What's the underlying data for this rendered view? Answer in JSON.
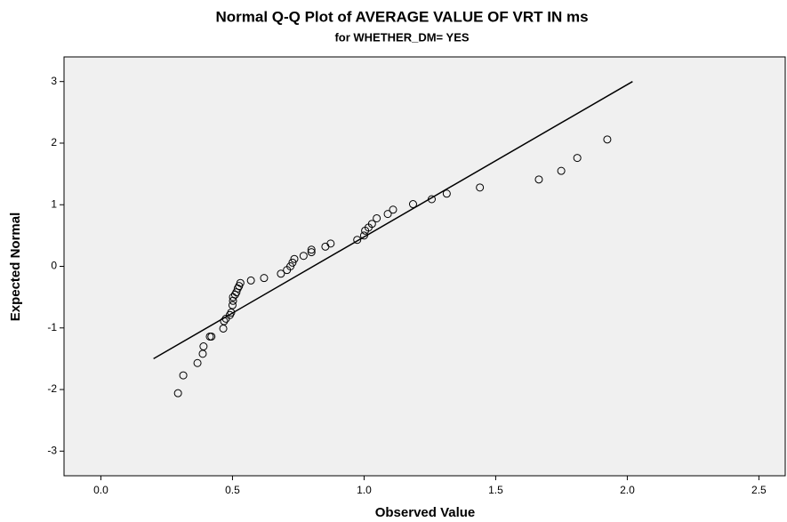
{
  "chart_data": {
    "type": "scatter",
    "title": "Normal Q-Q Plot of AVERAGE VALUE OF VRT IN ms",
    "subtitle": "for WHETHER_DM= YES",
    "x_label": "Observed Value",
    "y_label": "Expected Normal",
    "xlim": [
      -0.14,
      2.6
    ],
    "ylim": [
      -3.4,
      3.4
    ],
    "xticks": [
      {
        "value": 0,
        "label": "0.0"
      },
      0.5,
      {
        "value": 1,
        "label": "1.0"
      },
      1.5,
      {
        "value": 2,
        "label": "2.0"
      },
      2.5
    ],
    "yticks": [
      -3,
      -2,
      -1,
      0,
      1,
      2,
      3
    ],
    "background": "#f0f0f0",
    "series": [
      {
        "mode": "markers",
        "color": "#000000",
        "x": [
          0.293,
          0.313,
          0.367,
          0.387,
          0.39,
          0.414,
          0.42,
          0.465,
          0.468,
          0.475,
          0.49,
          0.495,
          0.5,
          0.502,
          0.502,
          0.51,
          0.515,
          0.52,
          0.525,
          0.53,
          0.57,
          0.62,
          0.684,
          0.707,
          0.72,
          0.728,
          0.735,
          0.77,
          0.8,
          0.8,
          0.853,
          0.873,
          0.974,
          1.0,
          1.004,
          1.017,
          1.03,
          1.048,
          1.09,
          1.11,
          1.186,
          1.257,
          1.314,
          1.44,
          1.664,
          1.749,
          1.81,
          1.924
        ],
        "values": [
          -2.06,
          -1.77,
          -1.57,
          -1.42,
          -1.3,
          -1.14,
          -1.14,
          -1.01,
          -0.89,
          -0.85,
          -0.79,
          -0.75,
          -0.63,
          -0.56,
          -0.5,
          -0.46,
          -0.42,
          -0.36,
          -0.32,
          -0.27,
          -0.23,
          -0.19,
          -0.12,
          -0.06,
          0.0,
          0.06,
          0.12,
          0.17,
          0.23,
          0.27,
          0.32,
          0.37,
          0.43,
          0.5,
          0.58,
          0.63,
          0.69,
          0.78,
          0.85,
          0.92,
          1.01,
          1.09,
          1.18,
          1.28,
          1.41,
          1.55,
          1.76,
          2.06
        ]
      },
      {
        "mode": "line",
        "color": "#000000",
        "x": [
          0.2,
          2.02
        ],
        "values": [
          -1.5,
          3.0
        ]
      }
    ]
  }
}
